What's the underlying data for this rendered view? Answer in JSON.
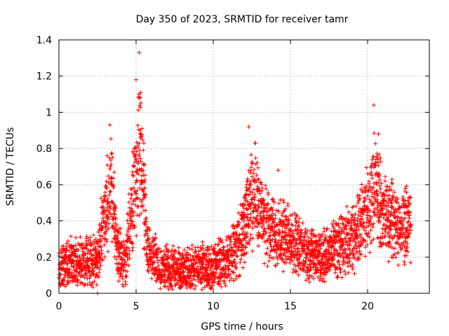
{
  "chart_data": {
    "type": "scatter",
    "title": "Day 350 of 2023, SRMTID for receiver tamr",
    "xlabel": "GPS time / hours",
    "ylabel": "SRMTID / TECUs",
    "xlim": [
      0,
      24
    ],
    "ylim": [
      0,
      1.4
    ],
    "xticks": [
      0,
      5,
      10,
      15,
      20
    ],
    "xtick_labels": [
      "0",
      "5",
      "10",
      "15",
      "20"
    ],
    "yticks": [
      0,
      0.2,
      0.4,
      0.6,
      0.8,
      1,
      1.2,
      1.4
    ],
    "ytick_labels": [
      "0",
      "0.2",
      "0.4",
      "0.6",
      "0.8",
      "1",
      "1.2",
      "1.4"
    ],
    "grid": true,
    "marker": "plus",
    "color": "#ff0000",
    "x_range_of_points": [
      0,
      22.8
    ],
    "series": [
      {
        "name": "SRMTID",
        "profile": [
          {
            "x": 0.0,
            "y": 0.15
          },
          {
            "x": 1.0,
            "y": 0.17
          },
          {
            "x": 2.0,
            "y": 0.17
          },
          {
            "x": 2.5,
            "y": 0.18
          },
          {
            "x": 3.0,
            "y": 0.45
          },
          {
            "x": 3.4,
            "y": 0.6
          },
          {
            "x": 3.8,
            "y": 0.25
          },
          {
            "x": 4.3,
            "y": 0.15
          },
          {
            "x": 4.8,
            "y": 0.55
          },
          {
            "x": 5.3,
            "y": 0.85
          },
          {
            "x": 5.7,
            "y": 0.25
          },
          {
            "x": 6.5,
            "y": 0.15
          },
          {
            "x": 8.0,
            "y": 0.12
          },
          {
            "x": 9.0,
            "y": 0.15
          },
          {
            "x": 10.0,
            "y": 0.14
          },
          {
            "x": 11.0,
            "y": 0.2
          },
          {
            "x": 11.8,
            "y": 0.3
          },
          {
            "x": 12.3,
            "y": 0.5
          },
          {
            "x": 12.8,
            "y": 0.55
          },
          {
            "x": 13.3,
            "y": 0.38
          },
          {
            "x": 14.0,
            "y": 0.33
          },
          {
            "x": 15.0,
            "y": 0.3
          },
          {
            "x": 16.0,
            "y": 0.22
          },
          {
            "x": 17.0,
            "y": 0.2
          },
          {
            "x": 18.0,
            "y": 0.25
          },
          {
            "x": 19.0,
            "y": 0.3
          },
          {
            "x": 19.8,
            "y": 0.42
          },
          {
            "x": 20.4,
            "y": 0.6
          },
          {
            "x": 21.0,
            "y": 0.45
          },
          {
            "x": 22.0,
            "y": 0.38
          },
          {
            "x": 22.8,
            "y": 0.38
          }
        ],
        "peaks": [
          {
            "x": 3.3,
            "y": 0.93
          },
          {
            "x": 5.2,
            "y": 1.33
          },
          {
            "x": 5.0,
            "y": 1.18
          },
          {
            "x": 12.3,
            "y": 0.92
          },
          {
            "x": 12.7,
            "y": 0.83
          },
          {
            "x": 14.2,
            "y": 0.68
          },
          {
            "x": 20.4,
            "y": 1.04
          },
          {
            "x": 20.7,
            "y": 0.88
          },
          {
            "x": 2.5,
            "y": 0.0
          }
        ]
      }
    ]
  }
}
